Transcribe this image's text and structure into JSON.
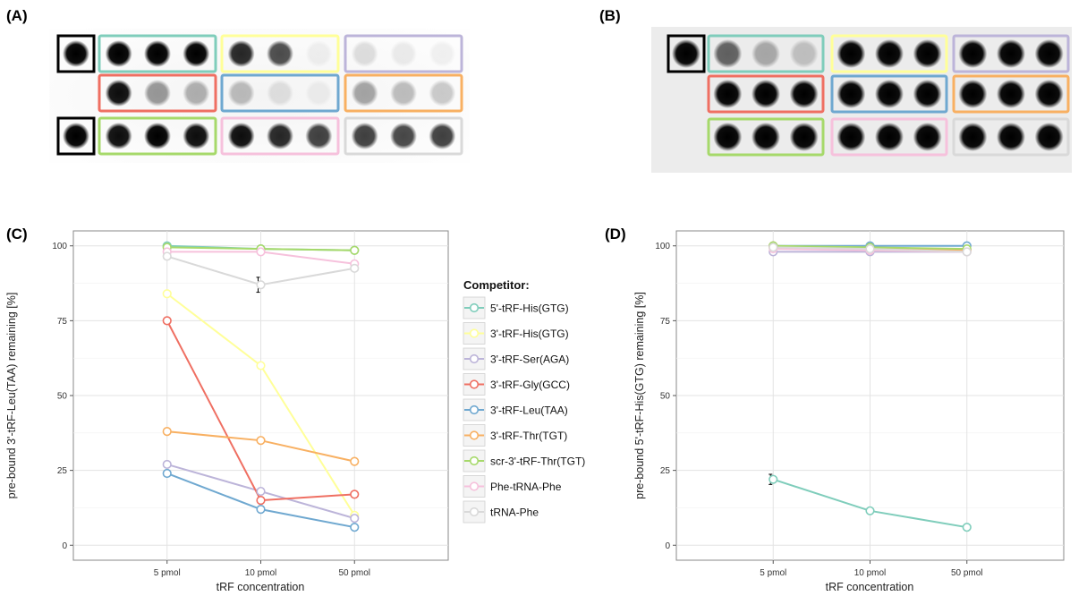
{
  "panels": {
    "A": "(A)",
    "B": "(B)",
    "C": "(C)",
    "D": "(D)"
  },
  "legend": {
    "title": "Competitor:"
  },
  "chart_data": [
    {
      "type": "line",
      "panel": "(C)",
      "xlabel": "tRF concentration",
      "ylabel": "pre-bound 3'-tRF-Leu(TAA) remaining [%]",
      "categories": [
        "5 pmol",
        "10 pmol",
        "50 pmol"
      ],
      "ylim": [
        -5,
        105
      ],
      "yticks": [
        0,
        25,
        50,
        75,
        100
      ],
      "grid": true,
      "legend_position": "right",
      "series": [
        {
          "name": "5'-tRF-His(GTG)",
          "color": "#7fcdbb",
          "values": [
            100,
            99,
            98.5
          ]
        },
        {
          "name": "3'-tRF-His(GTG)",
          "color": "#ffff99",
          "values": [
            84,
            60,
            10
          ]
        },
        {
          "name": "3'-tRF-Ser(AGA)",
          "color": "#bcb4d9",
          "values": [
            27,
            18,
            9
          ]
        },
        {
          "name": "3'-tRF-Gly(GCC)",
          "color": "#ef6f62",
          "values": [
            75,
            15,
            17
          ]
        },
        {
          "name": "3'-tRF-Leu(TAA)",
          "color": "#6fa8d0",
          "values": [
            24,
            12,
            6
          ]
        },
        {
          "name": "3'-tRF-Thr(TGT)",
          "color": "#f8b062",
          "values": [
            38,
            35,
            28
          ]
        },
        {
          "name": "scr-3'-tRF-Thr(TGT)",
          "color": "#a6d96a",
          "values": [
            99.5,
            99,
            98.5
          ]
        },
        {
          "name": "Phe-tRNA-Phe",
          "color": "#f6c1dc",
          "values": [
            98,
            98,
            94
          ]
        },
        {
          "name": "tRNA-Phe",
          "color": "#d9d9d9",
          "values": [
            96.5,
            87,
            92.5
          ],
          "error": [
            0,
            2.5,
            0
          ]
        }
      ]
    },
    {
      "type": "line",
      "panel": "(D)",
      "xlabel": "tRF concentration",
      "ylabel": "pre-bound 5'-tRF-His(GTG) remaining [%]",
      "categories": [
        "5 pmol",
        "10 pmol",
        "50 pmol"
      ],
      "ylim": [
        -5,
        105
      ],
      "yticks": [
        0,
        25,
        50,
        75,
        100
      ],
      "grid": true,
      "series": [
        {
          "name": "5'-tRF-His(GTG)",
          "color": "#7fcdbb",
          "values": [
            22,
            11.5,
            6
          ],
          "error": [
            1.7,
            0,
            0
          ]
        },
        {
          "name": "3'-tRF-His(GTG)",
          "color": "#ffff99",
          "values": [
            99.5,
            99,
            98.5
          ]
        },
        {
          "name": "3'-tRF-Ser(AGA)",
          "color": "#bcb4d9",
          "values": [
            98,
            98,
            98
          ]
        },
        {
          "name": "3'-tRF-Gly(GCC)",
          "color": "#ef6f62",
          "values": [
            99.5,
            99.5,
            98.5
          ]
        },
        {
          "name": "3'-tRF-Leu(TAA)",
          "color": "#6fa8d0",
          "values": [
            100,
            100,
            100
          ]
        },
        {
          "name": "3'-tRF-Thr(TGT)",
          "color": "#f8b062",
          "values": [
            100,
            99,
            98.5
          ]
        },
        {
          "name": "scr-3'-tRF-Thr(TGT)",
          "color": "#a6d96a",
          "values": [
            100,
            99.5,
            99
          ]
        },
        {
          "name": "Phe-tRNA-Phe",
          "color": "#f6c1dc",
          "values": [
            99,
            98.5,
            98
          ]
        },
        {
          "name": "tRNA-Phe",
          "color": "#d9d9d9",
          "values": [
            99.5,
            99,
            98
          ]
        }
      ]
    }
  ],
  "blots": {
    "A": {
      "reference_intensity": [
        1.0,
        1.0
      ],
      "groups": [
        {
          "row": 0,
          "col": 0,
          "color": "#7fcdbb",
          "intensity": [
            1.0,
            1.0,
            1.0
          ]
        },
        {
          "row": 0,
          "col": 1,
          "color": "#ffff99",
          "intensity": [
            0.85,
            0.7,
            0.05
          ]
        },
        {
          "row": 0,
          "col": 2,
          "color": "#bcb4d9",
          "intensity": [
            0.12,
            0.07,
            0.05
          ]
        },
        {
          "row": 1,
          "col": 0,
          "color": "#ef6f62",
          "intensity": [
            0.95,
            0.4,
            0.3
          ]
        },
        {
          "row": 1,
          "col": 1,
          "color": "#6fa8d0",
          "intensity": [
            0.25,
            0.1,
            0.05
          ]
        },
        {
          "row": 1,
          "col": 2,
          "color": "#f8b062",
          "intensity": [
            0.35,
            0.25,
            0.2
          ]
        },
        {
          "row": 2,
          "col": 0,
          "color": "#a6d96a",
          "intensity": [
            0.95,
            1.0,
            0.95
          ]
        },
        {
          "row": 2,
          "col": 1,
          "color": "#f6c1dc",
          "intensity": [
            0.95,
            0.85,
            0.75
          ]
        },
        {
          "row": 2,
          "col": 2,
          "color": "#d9d9d9",
          "intensity": [
            0.75,
            0.72,
            0.75
          ]
        }
      ]
    },
    "B": {
      "reference_intensity": [
        1.0
      ],
      "groups": [
        {
          "row": 0,
          "col": 0,
          "color": "#7fcdbb",
          "intensity": [
            0.6,
            0.3,
            0.2
          ]
        },
        {
          "row": 0,
          "col": 1,
          "color": "#ffff99",
          "intensity": [
            1.0,
            1.0,
            1.0
          ]
        },
        {
          "row": 0,
          "col": 2,
          "color": "#bcb4d9",
          "intensity": [
            1.0,
            1.0,
            1.0
          ]
        },
        {
          "row": 1,
          "col": 0,
          "color": "#ef6f62",
          "intensity": [
            1.0,
            1.0,
            1.0
          ]
        },
        {
          "row": 1,
          "col": 1,
          "color": "#6fa8d0",
          "intensity": [
            1.0,
            1.0,
            1.0
          ]
        },
        {
          "row": 1,
          "col": 2,
          "color": "#f8b062",
          "intensity": [
            1.0,
            1.0,
            1.0
          ]
        },
        {
          "row": 2,
          "col": 0,
          "color": "#a6d96a",
          "intensity": [
            1.0,
            1.0,
            1.0
          ]
        },
        {
          "row": 2,
          "col": 1,
          "color": "#f6c1dc",
          "intensity": [
            1.0,
            1.0,
            1.0
          ]
        },
        {
          "row": 2,
          "col": 2,
          "color": "#d9d9d9",
          "intensity": [
            1.0,
            1.0,
            1.0
          ]
        }
      ]
    }
  }
}
